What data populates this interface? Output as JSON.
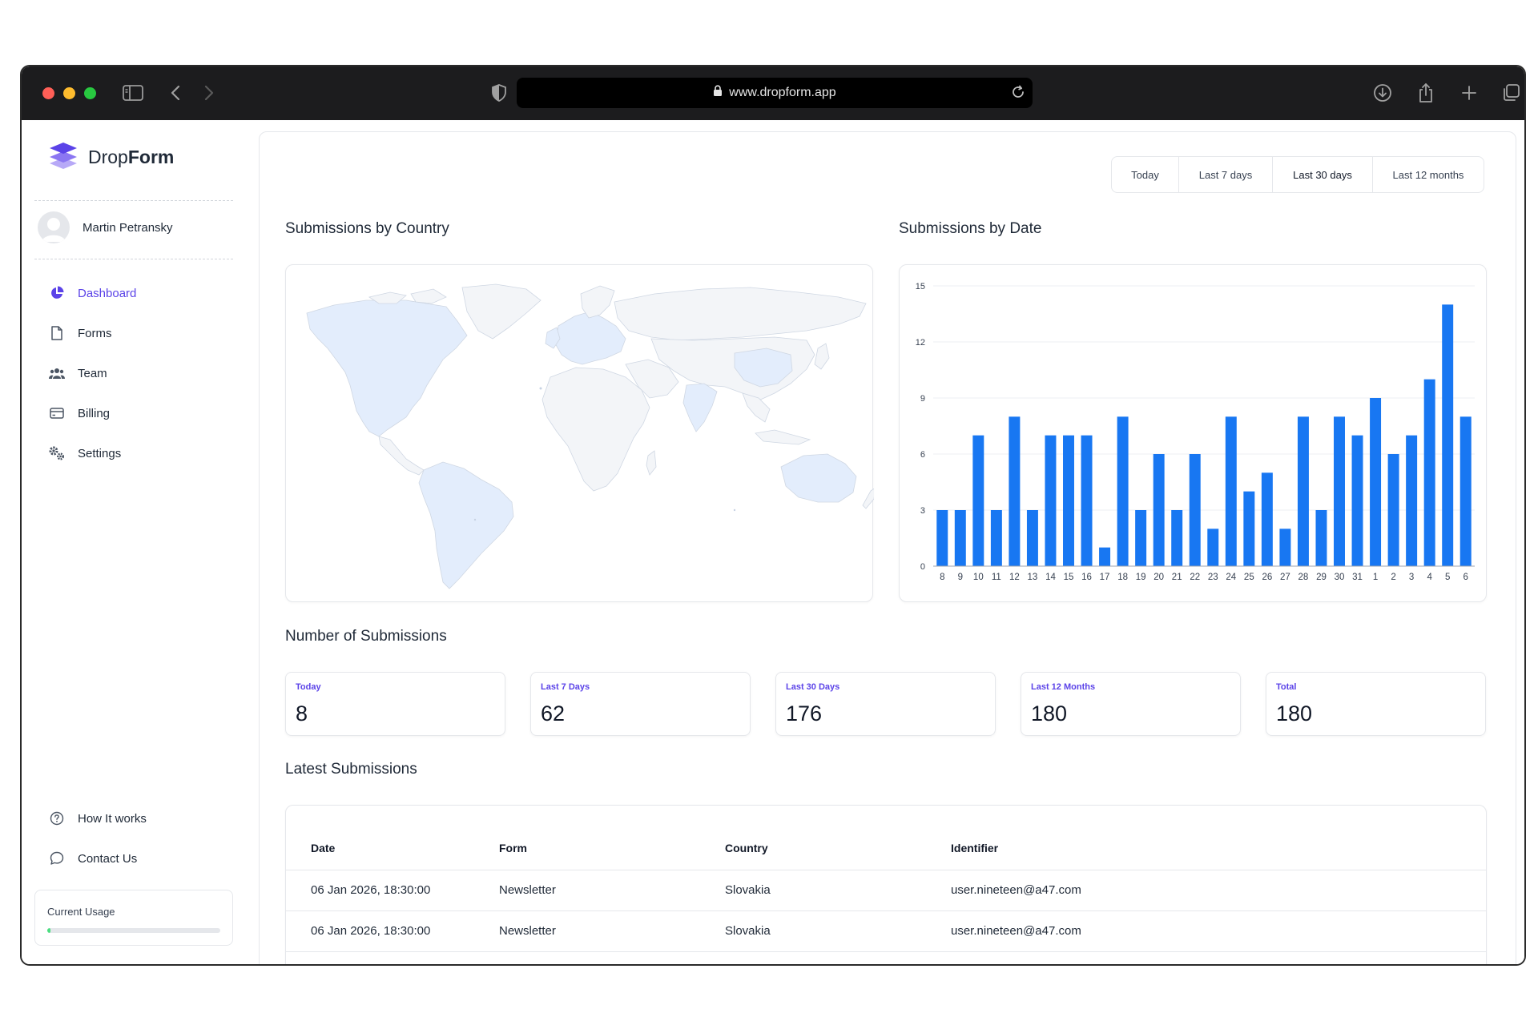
{
  "browser": {
    "url": "www.dropform.app"
  },
  "sidebar": {
    "logo": {
      "part1": "Drop",
      "part2": "Form"
    },
    "user": {
      "name": "Martin Petransky"
    },
    "nav": [
      {
        "label": "Dashboard",
        "icon": "pie-chart-icon",
        "active": true
      },
      {
        "label": "Forms",
        "icon": "file-icon"
      },
      {
        "label": "Team",
        "icon": "users-icon"
      },
      {
        "label": "Billing",
        "icon": "credit-card-icon"
      },
      {
        "label": "Settings",
        "icon": "gears-icon"
      }
    ],
    "bottom_nav": [
      {
        "label": "How It works",
        "icon": "question-circle-icon"
      },
      {
        "label": "Contact Us",
        "icon": "chat-bubble-icon"
      }
    ],
    "usage": {
      "label": "Current Usage",
      "fraction": 0.02
    }
  },
  "ranges": [
    {
      "label": "Today"
    },
    {
      "label": "Last 7 days"
    },
    {
      "label": "Last 30 days",
      "active": true
    },
    {
      "label": "Last 12 months"
    }
  ],
  "sections": {
    "country": "Submissions by Country",
    "date": "Submissions by Date",
    "count": "Number of Submissions",
    "latest": "Latest Submissions"
  },
  "stats": [
    {
      "label": "Today",
      "value": "8"
    },
    {
      "label": "Last 7 Days",
      "value": "62"
    },
    {
      "label": "Last 30 Days",
      "value": "176"
    },
    {
      "label": "Last 12 Months",
      "value": "180"
    },
    {
      "label": "Total",
      "value": "180"
    }
  ],
  "table": {
    "headers": [
      "Date",
      "Form",
      "Country",
      "Identifier"
    ],
    "rows": [
      [
        "06 Jan 2026, 18:30:00",
        "Newsletter",
        "Slovakia",
        "user.nineteen@a47.com"
      ],
      [
        "06 Jan 2026, 18:30:00",
        "Newsletter",
        "Slovakia",
        "user.nineteen@a47.com"
      ]
    ]
  },
  "colors": {
    "accent": "#5b43e8",
    "bar": "#1877f2",
    "map_fill": "#eff6ff"
  },
  "chart_data": {
    "type": "bar",
    "title": "Submissions by Date",
    "categories": [
      "8",
      "9",
      "10",
      "11",
      "12",
      "13",
      "14",
      "15",
      "16",
      "17",
      "18",
      "19",
      "20",
      "21",
      "22",
      "23",
      "24",
      "25",
      "26",
      "27",
      "28",
      "29",
      "30",
      "31",
      "1",
      "2",
      "3",
      "4",
      "5",
      "6"
    ],
    "values": [
      3,
      3,
      7,
      3,
      8,
      3,
      7,
      7,
      7,
      1,
      8,
      3,
      6,
      3,
      6,
      2,
      8,
      4,
      5,
      2,
      8,
      3,
      8,
      7,
      9,
      6,
      7,
      10,
      14,
      8
    ],
    "yticks": [
      0,
      3,
      6,
      9,
      12,
      15
    ],
    "ylim": [
      0,
      15
    ],
    "grid": true
  }
}
